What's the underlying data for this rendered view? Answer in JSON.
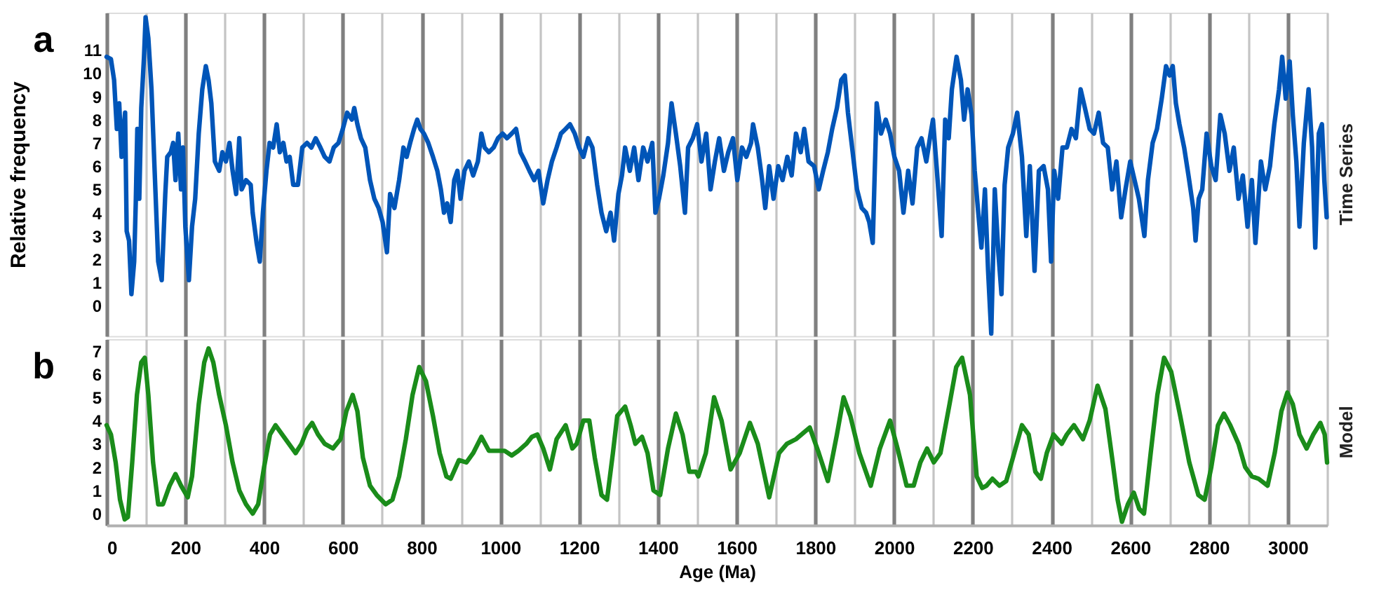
{
  "chart_data": [
    {
      "type": "line",
      "ylabel": "Relative frequency",
      "y2label": "Time Series",
      "annotations": [
        "a"
      ],
      "tick_labels": "y",
      "grid": "x",
      "xlim": [
        0,
        3100
      ],
      "ylim": [
        -1.3,
        12.6
      ],
      "yticks": [
        0,
        1,
        2,
        3,
        4,
        5,
        6,
        7,
        8,
        9,
        10,
        11
      ],
      "xticks": [
        0,
        {
          "value": 100,
          "label": null
        },
        200,
        {
          "value": 300,
          "label": null
        },
        400,
        {
          "value": 500,
          "label": null
        },
        600,
        {
          "value": 700,
          "label": null
        },
        800,
        {
          "value": 900,
          "label": null
        },
        1000,
        {
          "value": 1100,
          "label": null
        },
        1200,
        {
          "value": 1300,
          "label": null
        },
        1400,
        {
          "value": 1500,
          "label": null
        },
        1600,
        {
          "value": 1700,
          "label": null
        },
        1800,
        {
          "value": 1900,
          "label": null
        },
        2000,
        {
          "value": 2100,
          "label": null
        },
        2200,
        {
          "value": 2300,
          "label": null
        },
        2400,
        {
          "value": 2500,
          "label": null
        },
        2600,
        {
          "value": 2700,
          "label": null
        },
        2800,
        {
          "value": 2900,
          "label": null
        },
        3000,
        {
          "value": 3100,
          "label": null
        }
      ],
      "series": [
        {
          "color": "#0055b8",
          "x": [
            0,
            11,
            19,
            26,
            32,
            38,
            42,
            47,
            51,
            57,
            63,
            70,
            74,
            78,
            83,
            88,
            95,
            99,
            106,
            114,
            122,
            131,
            140,
            149,
            154,
            163,
            169,
            175,
            182,
            189,
            194,
            200,
            209,
            217,
            225,
            234,
            243,
            252,
            259,
            266,
            275,
            286,
            294,
            303,
            312,
            320,
            329,
            337,
            343,
            354,
            366,
            371,
            381,
            389,
            397,
            406,
            414,
            423,
            432,
            440,
            449,
            457,
            465,
            474,
            486,
            497,
            509,
            520,
            531,
            543,
            554,
            566,
            577,
            589,
            600,
            611,
            623,
            629,
            637,
            646,
            657,
            669,
            680,
            691,
            701,
            712,
            720,
            731,
            743,
            754,
            762,
            771,
            781,
            789,
            797,
            806,
            817,
            829,
            840,
            849,
            857,
            865,
            874,
            883,
            891,
            899,
            909,
            920,
            931,
            943,
            952,
            960,
            971,
            983,
            994,
            1006,
            1017,
            1029,
            1040,
            1051,
            1063,
            1074,
            1086,
            1097,
            1109,
            1120,
            1131,
            1143,
            1154,
            1166,
            1177,
            1189,
            1200,
            1211,
            1223,
            1234,
            1246,
            1257,
            1269,
            1280,
            1289,
            1300,
            1309,
            1317,
            1329,
            1340,
            1351,
            1363,
            1374,
            1386,
            1394,
            1403,
            1414,
            1426,
            1435,
            1446,
            1457,
            1469,
            1477,
            1489,
            1500,
            1511,
            1523,
            1534,
            1545,
            1556,
            1568,
            1579,
            1591,
            1602,
            1614,
            1625,
            1637,
            1642,
            1654,
            1665,
            1673,
            1683,
            1694,
            1706,
            1717,
            1729,
            1740,
            1751,
            1763,
            1772,
            1783,
            1797,
            1809,
            1820,
            1832,
            1843,
            1855,
            1866,
            1875,
            1883,
            1895,
            1906,
            1918,
            1929,
            1937,
            1946,
            1956,
            1967,
            1979,
            1990,
            2001,
            2013,
            2024,
            2036,
            2047,
            2059,
            2070,
            2082,
            2093,
            2099,
            2109,
            2121,
            2130,
            2139,
            2147,
            2159,
            2170,
            2178,
            2187,
            2197,
            2205,
            2213,
            2222,
            2231,
            2239,
            2247,
            2256,
            2265,
            2273,
            2281,
            2290,
            2302,
            2313,
            2325,
            2336,
            2345,
            2357,
            2368,
            2380,
            2391,
            2399,
            2407,
            2417,
            2428,
            2439,
            2451,
            2462,
            2474,
            2485,
            2497,
            2508,
            2520,
            2531,
            2543,
            2554,
            2565,
            2577,
            2588,
            2600,
            2611,
            2622,
            2636,
            2645,
            2657,
            2668,
            2680,
            2691,
            2700,
            2708,
            2716,
            2725,
            2737,
            2748,
            2760,
            2766,
            2774,
            2783,
            2794,
            2806,
            2817,
            2829,
            2840,
            2852,
            2863,
            2875,
            2886,
            2898,
            2909,
            2918,
            2932,
            2943,
            2955,
            2966,
            2978,
            2986,
            2995,
            3005,
            3013,
            3022,
            3030,
            3041,
            3053,
            3062,
            3070,
            3079,
            3087,
            3093,
            3099
          ],
          "values": [
            10.7,
            10.6,
            9.7,
            7.6,
            8.7,
            6.4,
            7.4,
            8.3,
            3.2,
            2.8,
            0.5,
            1.9,
            4.4,
            7.6,
            4.6,
            8.5,
            10.7,
            12.4,
            11.5,
            9.3,
            5.8,
            1.9,
            1.1,
            4.8,
            6.4,
            6.6,
            7.0,
            5.4,
            7.4,
            5.0,
            6.8,
            3.4,
            1.1,
            3.4,
            4.6,
            7.4,
            9.3,
            10.3,
            9.7,
            8.7,
            6.2,
            5.8,
            6.6,
            6.2,
            7.0,
            5.8,
            4.8,
            7.2,
            5.0,
            5.4,
            5.2,
            4.0,
            2.7,
            1.9,
            4.0,
            5.8,
            7.0,
            6.8,
            7.8,
            6.6,
            7.0,
            6.2,
            6.4,
            5.2,
            5.2,
            6.8,
            7.0,
            6.8,
            7.2,
            6.8,
            6.4,
            6.2,
            6.8,
            7.0,
            7.6,
            8.3,
            8.0,
            8.5,
            7.8,
            7.2,
            6.8,
            5.4,
            4.6,
            4.2,
            3.6,
            2.3,
            4.8,
            4.2,
            5.4,
            6.8,
            6.4,
            7.0,
            7.6,
            8.0,
            7.6,
            7.4,
            7.0,
            6.4,
            5.8,
            5.0,
            4.0,
            4.4,
            3.6,
            5.4,
            5.8,
            4.6,
            5.8,
            6.2,
            5.6,
            6.2,
            7.4,
            6.8,
            6.6,
            6.8,
            7.2,
            7.4,
            7.2,
            7.4,
            7.6,
            6.6,
            6.2,
            5.8,
            5.4,
            5.8,
            4.4,
            5.4,
            6.2,
            6.8,
            7.4,
            7.6,
            7.8,
            7.4,
            6.8,
            6.4,
            7.2,
            6.8,
            5.2,
            4.0,
            3.2,
            4.0,
            2.8,
            4.8,
            5.6,
            6.8,
            5.8,
            6.8,
            5.4,
            6.8,
            6.2,
            7.0,
            4.0,
            4.6,
            5.6,
            7.0,
            8.7,
            7.4,
            6.0,
            4.0,
            6.8,
            7.2,
            7.8,
            6.2,
            7.4,
            5.0,
            6.2,
            7.2,
            5.8,
            6.6,
            7.2,
            5.4,
            6.8,
            6.4,
            7.0,
            7.8,
            6.8,
            5.4,
            4.2,
            6.0,
            4.6,
            6.0,
            5.4,
            6.4,
            5.6,
            7.4,
            6.6,
            7.6,
            6.2,
            6.0,
            5.0,
            5.8,
            6.6,
            7.6,
            8.5,
            9.7,
            9.9,
            8.3,
            6.6,
            5.0,
            4.2,
            4.0,
            3.6,
            2.7,
            8.7,
            7.4,
            8.0,
            7.4,
            6.4,
            5.8,
            4.0,
            5.8,
            4.4,
            6.8,
            7.2,
            6.2,
            7.4,
            8.0,
            5.8,
            3.0,
            8.0,
            7.2,
            9.3,
            10.7,
            9.7,
            8.0,
            9.3,
            8.2,
            5.8,
            4.2,
            2.5,
            5.0,
            1.5,
            -1.2,
            5.0,
            2.3,
            0.5,
            5.2,
            6.8,
            7.4,
            8.3,
            6.4,
            3.0,
            6.0,
            1.5,
            5.8,
            6.0,
            5.0,
            1.9,
            5.8,
            4.6,
            6.8,
            6.8,
            7.6,
            7.2,
            9.3,
            8.5,
            7.6,
            7.4,
            8.3,
            7.0,
            6.8,
            5.0,
            6.2,
            3.8,
            5.0,
            6.2,
            5.4,
            4.6,
            3.0,
            5.4,
            7.0,
            7.6,
            8.9,
            10.3,
            9.9,
            10.3,
            8.7,
            7.8,
            6.8,
            5.6,
            4.2,
            2.8,
            4.6,
            5.0,
            7.4,
            6.0,
            5.4,
            8.2,
            7.4,
            5.8,
            6.8,
            4.6,
            5.6,
            3.4,
            5.4,
            2.7,
            6.2,
            5.0,
            6.0,
            7.8,
            9.3,
            10.7,
            8.9,
            10.5,
            8.2,
            6.2,
            3.4,
            7.0,
            9.3,
            6.8,
            2.5,
            7.4,
            7.8,
            5.4,
            3.8
          ]
        }
      ]
    },
    {
      "type": "line",
      "xlabel": "Age (Ma)",
      "y2label": "Model",
      "annotations": [
        "b"
      ],
      "grid": "x",
      "xlim": [
        0,
        3100
      ],
      "ylim": [
        -0.5,
        7.5
      ],
      "yticks": [
        0,
        1,
        2,
        3,
        4,
        5,
        6,
        7
      ],
      "xticks": [
        0,
        {
          "value": 100,
          "label": null
        },
        200,
        {
          "value": 300,
          "label": null
        },
        400,
        {
          "value": 500,
          "label": null
        },
        600,
        {
          "value": 700,
          "label": null
        },
        800,
        {
          "value": 900,
          "label": null
        },
        1000,
        {
          "value": 1100,
          "label": null
        },
        1200,
        {
          "value": 1300,
          "label": null
        },
        1400,
        {
          "value": 1500,
          "label": null
        },
        1600,
        {
          "value": 1700,
          "label": null
        },
        1800,
        {
          "value": 1900,
          "label": null
        },
        2000,
        {
          "value": 2100,
          "label": null
        },
        2200,
        {
          "value": 2300,
          "label": null
        },
        2400,
        {
          "value": 2500,
          "label": null
        },
        2600,
        {
          "value": 2700,
          "label": null
        },
        2800,
        {
          "value": 2900,
          "label": null
        },
        3000,
        {
          "value": 3100,
          "label": null
        }
      ],
      "series": [
        {
          "color": "#1a8c1a",
          "x": [
            0,
            11,
            23,
            34,
            46,
            54,
            65,
            77,
            88,
            97,
            106,
            118,
            131,
            143,
            160,
            175,
            189,
            206,
            217,
            234,
            248,
            259,
            271,
            286,
            303,
            320,
            337,
            354,
            371,
            385,
            400,
            415,
            429,
            446,
            463,
            480,
            495,
            509,
            522,
            537,
            554,
            575,
            594,
            609,
            625,
            637,
            651,
            669,
            686,
            709,
            726,
            743,
            760,
            777,
            794,
            811,
            829,
            846,
            863,
            874,
            895,
            914,
            931,
            952,
            971,
            994,
            1011,
            1029,
            1046,
            1066,
            1080,
            1094,
            1109,
            1126,
            1143,
            1166,
            1183,
            1194,
            1211,
            1226,
            1240,
            1257,
            1271,
            1286,
            1297,
            1317,
            1331,
            1343,
            1360,
            1374,
            1389,
            1406,
            1426,
            1446,
            1463,
            1480,
            1497,
            1503,
            1522,
            1543,
            1562,
            1585,
            1608,
            1634,
            1654,
            1683,
            1708,
            1728,
            1751,
            1786,
            1809,
            1832,
            1855,
            1872,
            1889,
            1912,
            1941,
            1964,
            1990,
            2009,
            2032,
            2050,
            2067,
            2084,
            2101,
            2118,
            2141,
            2158,
            2173,
            2193,
            2210,
            2224,
            2235,
            2250,
            2268,
            2285,
            2302,
            2325,
            2342,
            2359,
            2373,
            2388,
            2405,
            2426,
            2439,
            2457,
            2480,
            2497,
            2517,
            2537,
            2554,
            2568,
            2579,
            2594,
            2609,
            2623,
            2635,
            2652,
            2669,
            2686,
            2704,
            2727,
            2750,
            2773,
            2789,
            2806,
            2823,
            2838,
            2854,
            2875,
            2892,
            2909,
            2926,
            2949,
            2967,
            2984,
            2999,
            3013,
            3030,
            3048,
            3065,
            3083,
            3094,
            3100
          ],
          "values": [
            3.8,
            3.4,
            2.2,
            0.6,
            -0.25,
            -0.15,
            2.2,
            5.1,
            6.5,
            6.7,
            5.1,
            2.2,
            0.4,
            0.4,
            1.2,
            1.7,
            1.2,
            0.7,
            1.6,
            4.7,
            6.5,
            7.1,
            6.5,
            5.1,
            3.8,
            2.2,
            1.0,
            0.4,
            0.0,
            0.4,
            2.0,
            3.4,
            3.8,
            3.4,
            3.0,
            2.6,
            3.0,
            3.6,
            3.9,
            3.4,
            3.0,
            2.8,
            3.2,
            4.4,
            5.1,
            4.4,
            2.4,
            1.2,
            0.8,
            0.4,
            0.6,
            1.6,
            3.2,
            5.1,
            6.3,
            5.7,
            4.2,
            2.6,
            1.6,
            1.5,
            2.3,
            2.2,
            2.6,
            3.3,
            2.7,
            2.7,
            2.7,
            2.5,
            2.7,
            3.0,
            3.3,
            3.4,
            2.8,
            1.9,
            3.2,
            3.8,
            2.8,
            3.0,
            4.0,
            4.0,
            2.4,
            0.8,
            0.6,
            2.6,
            4.2,
            4.6,
            3.8,
            3.0,
            3.3,
            2.6,
            1.0,
            0.8,
            2.8,
            4.3,
            3.4,
            1.8,
            1.8,
            1.6,
            2.6,
            5.0,
            4.0,
            1.9,
            2.6,
            3.9,
            3.0,
            0.7,
            2.6,
            3.0,
            3.2,
            3.7,
            2.6,
            1.4,
            3.4,
            5.0,
            4.2,
            2.6,
            1.2,
            2.8,
            4.0,
            2.8,
            1.2,
            1.2,
            2.2,
            2.8,
            2.2,
            2.6,
            4.7,
            6.3,
            6.7,
            5.1,
            1.6,
            1.1,
            1.2,
            1.5,
            1.2,
            1.4,
            2.4,
            3.8,
            3.4,
            1.8,
            1.5,
            2.6,
            3.4,
            3.0,
            3.4,
            3.8,
            3.2,
            4.0,
            5.5,
            4.5,
            2.4,
            0.6,
            -0.35,
            0.4,
            0.9,
            0.2,
            0.0,
            2.6,
            5.1,
            6.7,
            6.1,
            4.2,
            2.2,
            0.8,
            0.6,
            2.0,
            3.8,
            4.3,
            3.8,
            3.0,
            2.0,
            1.6,
            1.5,
            1.2,
            2.6,
            4.4,
            5.2,
            4.7,
            3.4,
            2.8,
            3.4,
            3.9,
            3.4,
            2.2
          ]
        }
      ]
    }
  ]
}
